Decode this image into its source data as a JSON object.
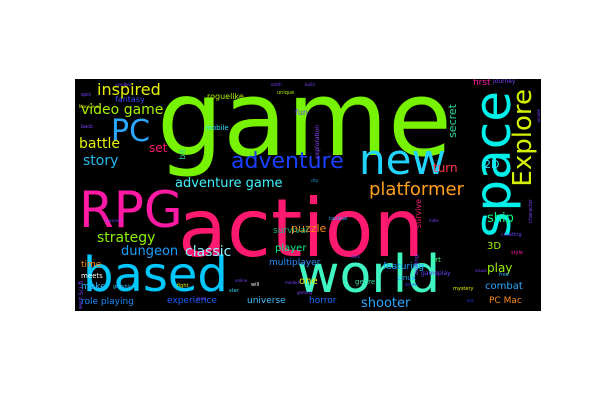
{
  "chart_data": {
    "type": "wordcloud",
    "background": "#000000",
    "words": [
      {
        "text": "game",
        "weight": 100,
        "color": "#77f200"
      },
      {
        "text": "action",
        "weight": 80,
        "color": "#ff1a70"
      },
      {
        "text": "world",
        "weight": 55,
        "color": "#3ff5c2"
      },
      {
        "text": "based",
        "weight": 52,
        "color": "#00c8ff"
      },
      {
        "text": "space",
        "weight": 50,
        "color": "#00f0ea"
      },
      {
        "text": "RPG",
        "weight": 50,
        "color": "#ff1aa6"
      },
      {
        "text": "new",
        "weight": 42,
        "color": "#22d5ff"
      },
      {
        "text": "PC",
        "weight": 30,
        "color": "#2aa8ff"
      },
      {
        "text": "Explore",
        "weight": 28,
        "color": "#d6f200"
      },
      {
        "text": "adventure",
        "weight": 22,
        "color": "#1a40ff"
      },
      {
        "text": "platformer",
        "weight": 18,
        "color": "#ff9f1a"
      },
      {
        "text": "inspired",
        "weight": 16,
        "color": "#e6f200"
      },
      {
        "text": "video game",
        "weight": 15,
        "color": "#a7f200"
      },
      {
        "text": "story",
        "weight": 15,
        "color": "#22b8f0"
      },
      {
        "text": "battle",
        "weight": 14,
        "color": "#e6f200"
      },
      {
        "text": "strategy",
        "weight": 14,
        "color": "#8ff200"
      },
      {
        "text": "adventure game",
        "weight": 13,
        "color": "#40f5ff"
      },
      {
        "text": "dungeon",
        "weight": 13,
        "color": "#1a9fff"
      },
      {
        "text": "classic",
        "weight": 13,
        "color": "#8cf5ff"
      },
      {
        "text": "ship",
        "weight": 12,
        "color": "#00ff88"
      },
      {
        "text": "play",
        "weight": 12,
        "color": "#9cf200"
      },
      {
        "text": "shooter",
        "weight": 12,
        "color": "#2aa8ff"
      },
      {
        "text": "puzzle",
        "weight": 11,
        "color": "#ff8a1a"
      },
      {
        "text": "turn",
        "weight": 11,
        "color": "#ff3a4a"
      },
      {
        "text": "set",
        "weight": 10,
        "color": "#ff1a70"
      },
      {
        "text": "secret",
        "weight": 10,
        "color": "#2ad5a0"
      },
      {
        "text": "2D",
        "weight": 10,
        "color": "#2ae0ff"
      },
      {
        "text": "3D",
        "weight": 9,
        "color": "#9cf200"
      },
      {
        "text": "one",
        "weight": 9,
        "color": "#e6f200"
      },
      {
        "text": "combat",
        "weight": 9,
        "color": "#2aa8ff"
      },
      {
        "text": "player",
        "weight": 9,
        "color": "#00f088"
      },
      {
        "text": "multiplayer",
        "weight": 8,
        "color": "#2a90ff"
      },
      {
        "text": "featuring",
        "weight": 8,
        "color": "#1aa6ff"
      },
      {
        "text": "survival",
        "weight": 8,
        "color": "#1ab07a"
      },
      {
        "text": "time",
        "weight": 8,
        "color": "#ff8a1a"
      },
      {
        "text": "make",
        "weight": 8,
        "color": "#2ab4ff"
      },
      {
        "text": "role playing",
        "weight": 8,
        "color": "#1a8cff"
      },
      {
        "text": "experience",
        "weight": 8,
        "color": "#1a60ff"
      },
      {
        "text": "universe",
        "weight": 8,
        "color": "#40c0ff"
      },
      {
        "text": "horror",
        "weight": 8,
        "color": "#1a6fff"
      },
      {
        "text": "PC Mac",
        "weight": 8,
        "color": "#ff8a1a"
      },
      {
        "text": "first",
        "weight": 7,
        "color": "#ff1aa6"
      },
      {
        "text": "fantasy",
        "weight": 7,
        "color": "#3a4aff"
      },
      {
        "text": "roguelike",
        "weight": 7,
        "color": "#b0f200"
      },
      {
        "text": "mobile",
        "weight": 6,
        "color": "#2ae0ff"
      },
      {
        "text": "fun",
        "weight": 6,
        "color": "#7a40ff"
      },
      {
        "text": "bit",
        "weight": 6,
        "color": "#2ad5a0"
      },
      {
        "text": "meets",
        "weight": 6,
        "color": "#ffffff"
      },
      {
        "text": "survive",
        "weight": 6,
        "color": "#ff1a70"
      },
      {
        "text": "genre",
        "weight": 6,
        "color": "#2ad5a0"
      },
      {
        "text": "art",
        "weight": 6,
        "color": "#3aff8a"
      },
      {
        "text": "Linux",
        "weight": 5,
        "color": "#2aa8ff"
      },
      {
        "text": "gameplay",
        "weight": 5,
        "color": "#6a40ff"
      },
      {
        "text": "journey",
        "weight": 5,
        "color": "#7a40ff"
      },
      {
        "text": "exploration",
        "weight": 5,
        "color": "#8a40ff"
      },
      {
        "text": "Sci fi",
        "weight": 5,
        "color": "#7a40ff"
      },
      {
        "text": "epic",
        "weight": 4,
        "color": "#7a40ff"
      },
      {
        "text": "graphic",
        "weight": 4,
        "color": "#40c0ff"
      },
      {
        "text": "mystery",
        "weight": 4,
        "color": "#e6f200"
      },
      {
        "text": "creating",
        "weight": 4,
        "color": "#6a40ff"
      },
      {
        "text": "style",
        "weight": 4,
        "color": "#ff1aa6"
      },
      {
        "text": "character",
        "weight": 4,
        "color": "#7a40ff"
      },
      {
        "text": "fight",
        "weight": 4,
        "color": "#e6f200"
      },
      {
        "text": "star",
        "weight": 4,
        "color": "#2ae0ff"
      },
      {
        "text": "tactical",
        "weight": 4,
        "color": "#2aa8ff"
      },
      {
        "text": "building",
        "weight": 4,
        "color": "#7a40ff"
      },
      {
        "text": "unique",
        "weight": 4,
        "color": "#b0f200"
      },
      {
        "text": "want",
        "weight": 4,
        "color": "#7a40ff"
      },
      {
        "text": "level",
        "weight": 3,
        "color": "#7a40ff"
      },
      {
        "text": "modern",
        "weight": 3,
        "color": "#7a40ff"
      },
      {
        "text": "dark",
        "weight": 3,
        "color": "#7a40ff"
      },
      {
        "text": "back",
        "weight": 3,
        "color": "#7a40ff"
      },
      {
        "text": "Mac Linux",
        "weight": 3,
        "color": "#e6f200"
      },
      {
        "text": "free",
        "weight": 3,
        "color": "#2aa8ff"
      },
      {
        "text": "era",
        "weight": 3,
        "color": "#1a40ff"
      },
      {
        "text": "city",
        "weight": 3,
        "color": "#2aa8ff"
      },
      {
        "text": "will",
        "weight": 3,
        "color": "#ffffff"
      },
      {
        "text": "earth",
        "weight": 3,
        "color": "#7a40ff"
      },
      {
        "text": "build",
        "weight": 3,
        "color": "#7a40ff"
      },
      {
        "text": "driven",
        "weight": 3,
        "color": "#3a40ff"
      },
      {
        "text": "online",
        "weight": 3,
        "color": "#7a40ff"
      },
      {
        "text": "gaming",
        "weight": 3,
        "color": "#7a40ff"
      },
      {
        "text": "sandbox",
        "weight": 3,
        "color": "#7a40ff"
      },
      {
        "text": "massive",
        "weight": 3,
        "color": "#7a40ff"
      },
      {
        "text": "indie",
        "weight": 3,
        "color": "#7a40ff"
      },
      {
        "text": "arcade",
        "weight": 3,
        "color": "#7a40ff"
      },
      {
        "text": "visual",
        "weight": 3,
        "color": "#7a40ff"
      }
    ]
  }
}
